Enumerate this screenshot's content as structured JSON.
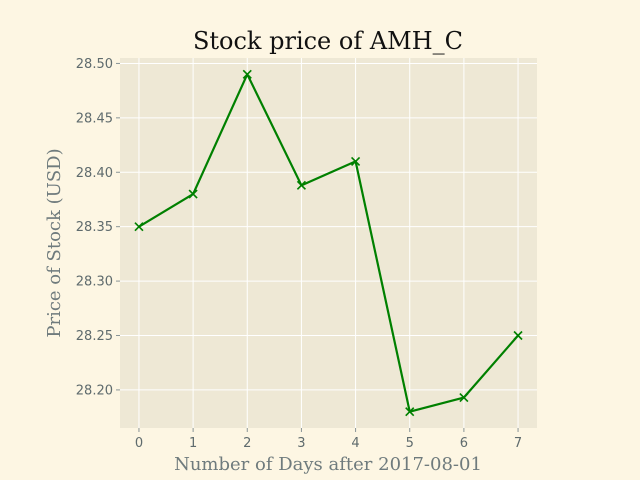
{
  "chart_data": {
    "type": "line",
    "title": "Stock price of AMH_C",
    "xlabel": "Number of Days after 2017-08-01",
    "ylabel": "Price of Stock (USD)",
    "x": [
      0,
      1,
      2,
      3,
      4,
      5,
      6,
      7
    ],
    "series": [
      {
        "values": [
          28.35,
          28.38,
          28.49,
          28.388,
          28.41,
          28.18,
          28.193,
          28.25
        ],
        "color": "#008000",
        "marker": "x"
      }
    ],
    "xlim": [
      -0.35,
      7.35
    ],
    "ylim": [
      28.165,
      28.505
    ],
    "x_ticks": [
      "0",
      "1",
      "2",
      "3",
      "4",
      "5",
      "6",
      "7"
    ],
    "y_ticks": [
      "28.20",
      "28.25",
      "28.30",
      "28.35",
      "28.40",
      "28.45",
      "28.50"
    ],
    "grid": true,
    "colors": {
      "figure_background": "#fdf6e3",
      "plot_background": "#eee8d5",
      "grid": "#ffffff"
    }
  }
}
